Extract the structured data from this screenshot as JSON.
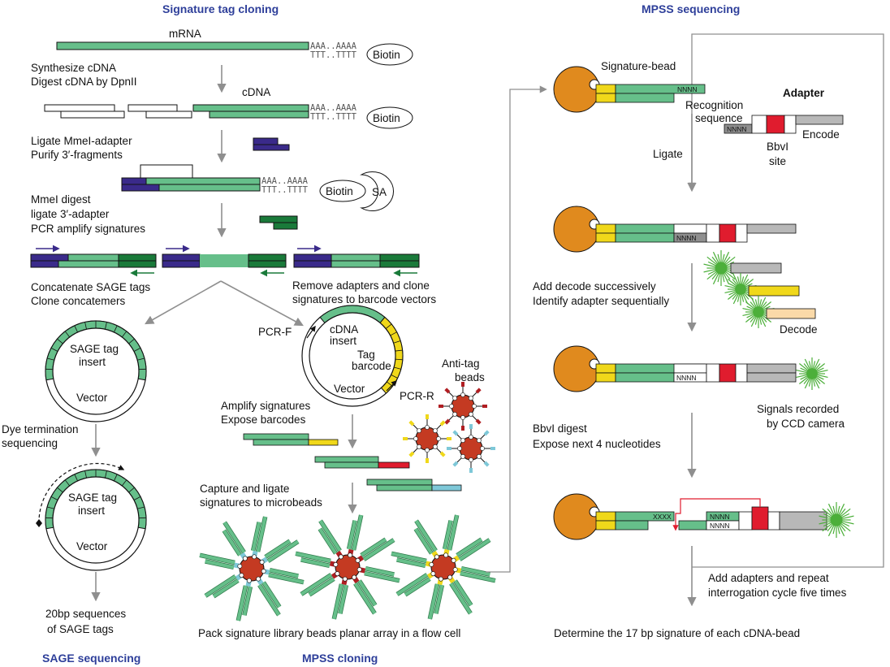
{
  "titles": {
    "signature_tag_cloning": "Signature tag cloning",
    "mpss_sequencing": "MPSS sequencing",
    "sage_sequencing": "SAGE sequencing",
    "mpss_cloning": "MPSS cloning"
  },
  "cloning": {
    "mrna": "mRNA",
    "polyA": "AAA..AAAA",
    "polyT": "TTT..TTTT",
    "biotin": "Biotin",
    "step1_line1": "Synthesize cDNA",
    "step1_line2": "Digest cDNA by DpnII",
    "cdna": "cDNA",
    "step2_line1": "Ligate MmeI-adapter",
    "step2_line2": "Purify 3′-fragments",
    "sa": "SA",
    "step3_line1": "MmeI digest",
    "step3_line2": "ligate 3′-adapter",
    "step3_line3": "PCR amplify signatures"
  },
  "sage": {
    "concat_line1": "Concatenate SAGE tags",
    "concat_line2": "Clone concatemers",
    "tag_insert_line1": "SAGE tag",
    "tag_insert_line2": "insert",
    "vector": "Vector",
    "dye_line1": "Dye termination",
    "dye_line2": "sequencing",
    "result_line1": "20bp sequences",
    "result_line2": "of SAGE tags"
  },
  "mpss_clone": {
    "remove_line1": "Remove adapters and clone",
    "remove_line2": "signatures to barcode vectors",
    "pcr_f": "PCR-F",
    "pcr_r": "PCR-R",
    "cdna_line1": "cDNA",
    "cdna_line2": "insert",
    "tag_line1": "Tag",
    "tag_line2": "barcode",
    "vector": "Vector",
    "antitag_line1": "Anti-tag",
    "antitag_line2": "beads",
    "amplify_line1": "Amplify signatures",
    "amplify_line2": "Expose barcodes",
    "capture_line1": "Capture and ligate",
    "capture_line2": "signatures to microbeads",
    "pack": "Pack signature library beads planar array in a flow cell"
  },
  "mpss_seq": {
    "signature_bead": "Signature-bead",
    "nnnn": "NNNN",
    "xxxx": "XXXX",
    "adapter": "Adapter",
    "recognition_line1": "Recognition",
    "recognition_line2": "sequence",
    "encode": "Encode",
    "bbvi_line1": "BbvI",
    "bbvi_line2": "site",
    "ligate": "Ligate",
    "decode_line1": "Add decode successively",
    "decode_line2": "Identify adapter sequentially",
    "decode": "Decode",
    "signals_line1": "Signals recorded",
    "signals_line2": "by CCD camera",
    "digest_line1": "BbvI digest",
    "digest_line2": "Expose next 4 nucleotides",
    "repeat_line1": "Add adapters and repeat",
    "repeat_line2": "interrogation cycle five times",
    "determine": "Determine the 17 bp signature of each cDNA-bead"
  },
  "colors": {
    "title": "#2e3f9a",
    "cdna_green": "#66bf8a",
    "dark_green": "#1a7a3a",
    "purple": "#3a2a8a",
    "bead_orange": "#e08a1e",
    "red": "#e01c2e",
    "yellow": "#f0d81a",
    "gray": "#b8b8b8",
    "light_blue": "#7ec8d8",
    "peach": "#fad9a8",
    "dark_red": "#b01e22",
    "starburst": "#4caf3a"
  }
}
